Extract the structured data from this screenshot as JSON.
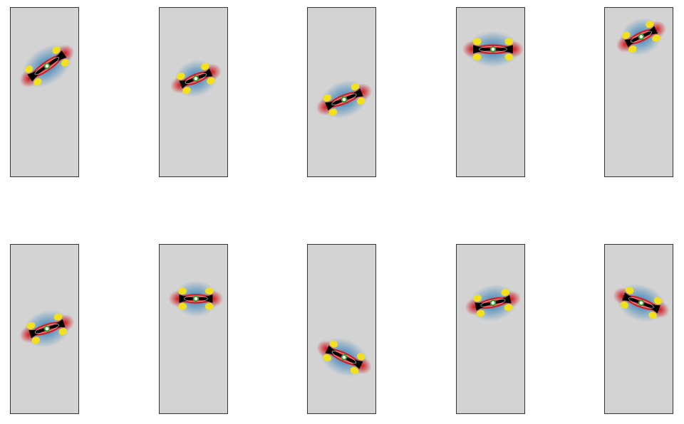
{
  "figure": {
    "panels": [
      {
        "id": "r1c1",
        "angle": -35,
        "length": 1.0,
        "fill_color": "#000000"
      },
      {
        "id": "r1c2",
        "angle": -22,
        "length": 0.78,
        "fill_color": "#000000"
      },
      {
        "id": "r1c3",
        "angle": -22,
        "length": 0.9,
        "fill_color": "#000000"
      },
      {
        "id": "r1c4",
        "angle": 0,
        "length": 0.95,
        "fill_color": "#000000"
      },
      {
        "id": "r1c5",
        "angle": -25,
        "length": 0.78,
        "fill_color": "#000000"
      },
      {
        "id": "r2c1",
        "angle": -18,
        "length": 0.85,
        "fill_color": "#000000"
      },
      {
        "id": "r2c2",
        "angle": 0,
        "length": 0.8,
        "fill_color": "#000000"
      },
      {
        "id": "r2c3",
        "angle": 25,
        "length": 0.9,
        "fill_color": "#000000"
      },
      {
        "id": "r2c4",
        "angle": -12,
        "length": 0.85,
        "fill_color": "#000000"
      },
      {
        "id": "r2c5",
        "angle": 20,
        "length": 0.9,
        "fill_color": "#000000"
      }
    ],
    "colors": {
      "background": "#d3d3d3",
      "positive": "#d7191c",
      "negative": "#2c7bb6",
      "lobe": "#f2e01f",
      "center_marker": "#2ca02c"
    }
  }
}
